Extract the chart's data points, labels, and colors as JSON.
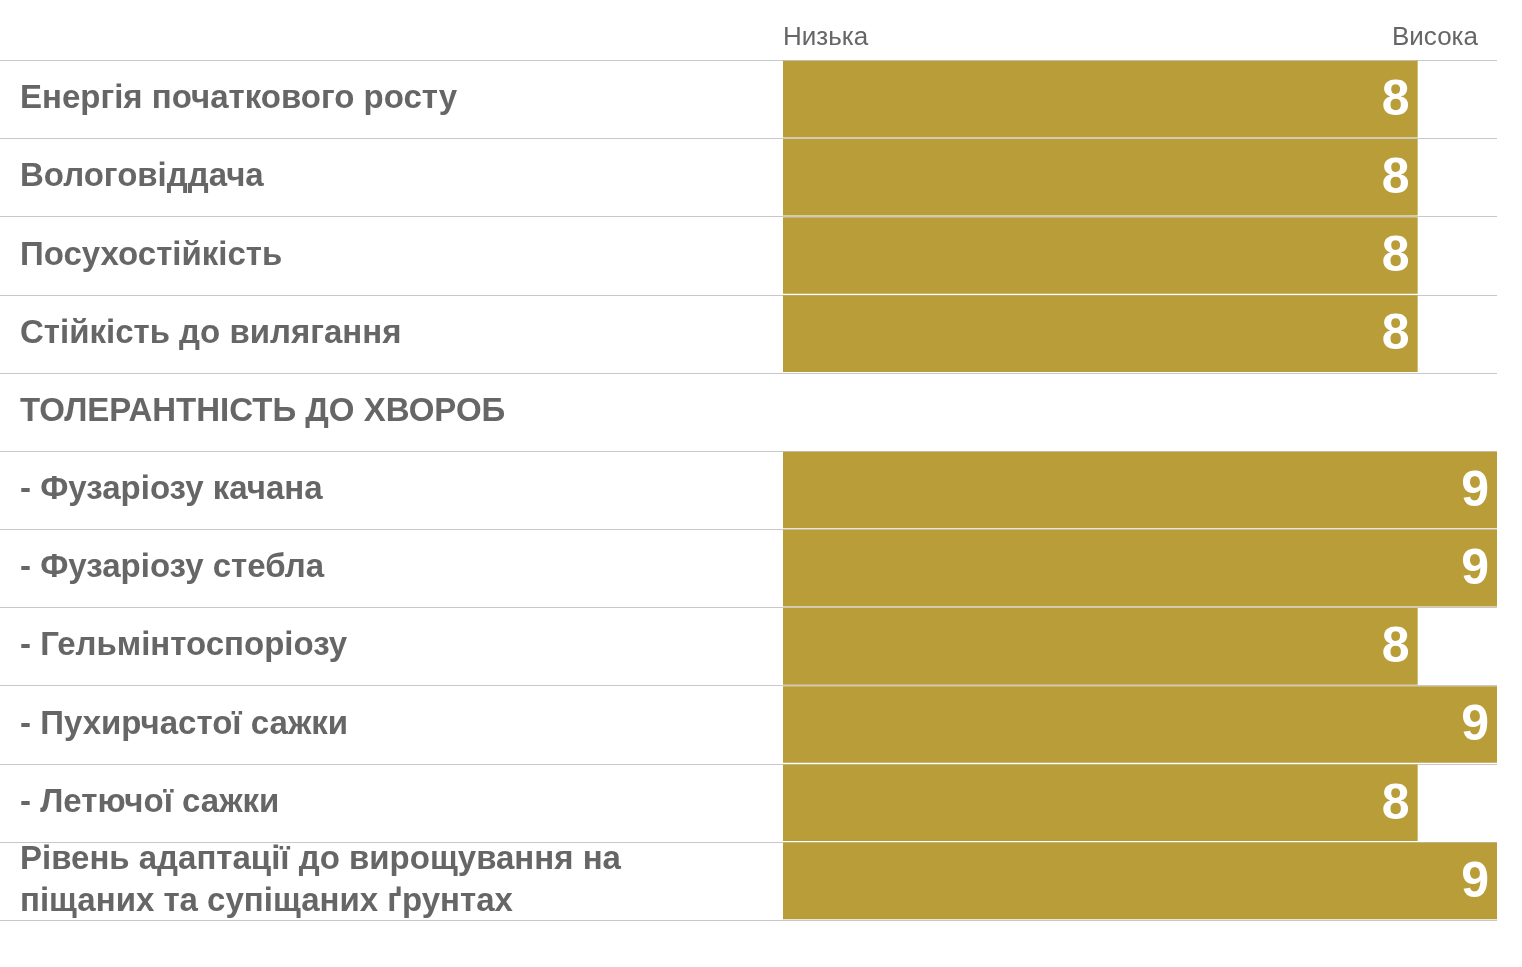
{
  "chart_data": {
    "type": "bar",
    "orientation": "horizontal",
    "categories": [
      "Енергія початкового росту",
      "Вологовіддача",
      "Посухостійкість",
      "Стійкість до вилягання",
      "ТОЛЕРАНТНІСТЬ ДО ХВОРОБ",
      "- Фузаріозу качана",
      "- Фузаріозу стебла",
      "- Гельмінтоспоріозу",
      "- Пухирчастої сажки",
      "- Летючої сажки",
      "Рівень адаптації до вирощування на піщаних та супіщаних ґрунтах"
    ],
    "values": [
      8,
      8,
      8,
      8,
      null,
      9,
      9,
      8,
      9,
      8,
      9
    ],
    "color": "#b89d38",
    "annotations": [
      "Низька",
      "Висока"
    ],
    "grid": "y",
    "data_labels": true,
    "legend": false
  }
}
